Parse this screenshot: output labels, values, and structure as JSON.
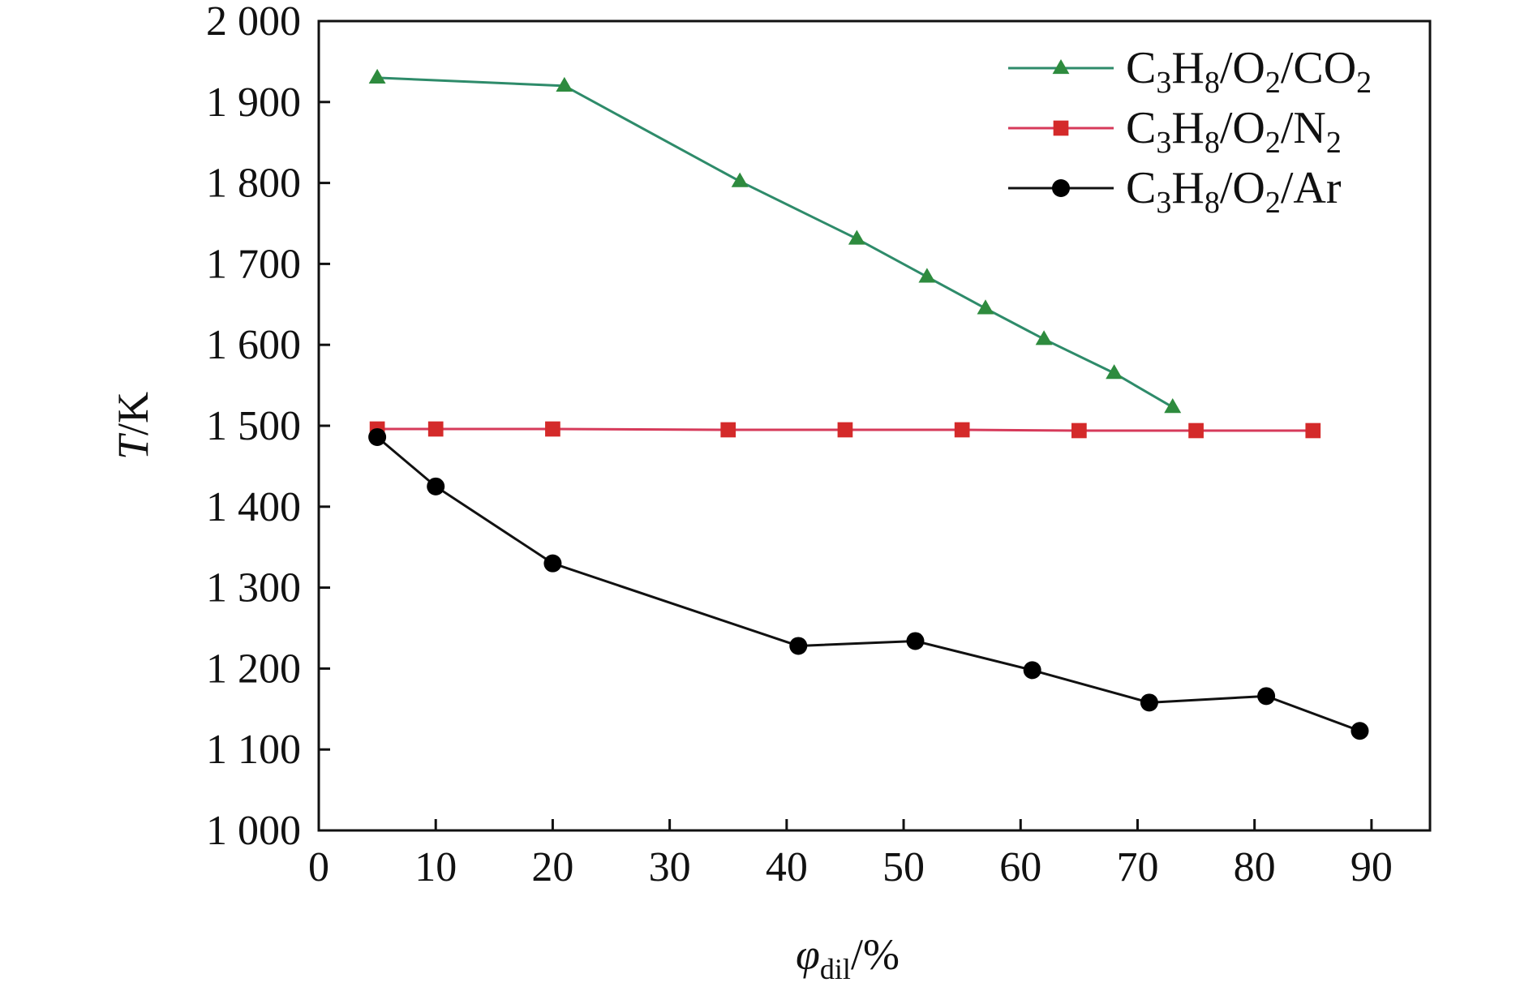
{
  "chart_data": {
    "type": "line",
    "xlabel": {
      "var": "φ",
      "sub": "dil",
      "unit": "/%"
    },
    "ylabel": {
      "var": "T",
      "unit": "/K"
    },
    "xlim": [
      0,
      95
    ],
    "ylim": [
      1000,
      2000
    ],
    "x_ticks": [
      0,
      10,
      20,
      30,
      40,
      50,
      60,
      70,
      80,
      90
    ],
    "x_tick_labels": [
      "0",
      "10",
      "20",
      "30",
      "40",
      "50",
      "60",
      "70",
      "80",
      "90"
    ],
    "y_ticks": [
      1000,
      1100,
      1200,
      1300,
      1400,
      1500,
      1600,
      1700,
      1800,
      1900,
      2000
    ],
    "y_tick_labels": [
      "1 000",
      "1 100",
      "1 200",
      "1 300",
      "1 400",
      "1 500",
      "1 600",
      "1 700",
      "1 800",
      "1 900",
      "2 000"
    ],
    "grid": false,
    "legend_position": "top-right",
    "series": [
      {
        "name": "C3H8/O2/CO2",
        "legend_parts": [
          [
            "C",
            ""
          ],
          [
            "3",
            "sub"
          ],
          [
            "H",
            ""
          ],
          [
            "8",
            "sub"
          ],
          [
            "/O",
            ""
          ],
          [
            "2",
            "sub"
          ],
          [
            "/CO",
            ""
          ],
          [
            "2",
            "sub"
          ]
        ],
        "marker": "triangle",
        "line_color": "#2e8b6a",
        "marker_color": "#2e8b3e",
        "x": [
          5,
          21,
          36,
          46,
          52,
          57,
          62,
          68,
          73
        ],
        "y": [
          1930,
          1920,
          1802,
          1731,
          1684,
          1645,
          1607,
          1565,
          1523
        ]
      },
      {
        "name": "C3H8/O2/N2",
        "legend_parts": [
          [
            "C",
            ""
          ],
          [
            "3",
            "sub"
          ],
          [
            "H",
            ""
          ],
          [
            "8",
            "sub"
          ],
          [
            "/O",
            ""
          ],
          [
            "2",
            "sub"
          ],
          [
            "/N",
            ""
          ],
          [
            "2",
            "sub"
          ]
        ],
        "marker": "square",
        "line_color": "#d63a5a",
        "marker_color": "#d42a2a",
        "x": [
          5,
          10,
          20,
          35,
          45,
          55,
          65,
          75,
          85
        ],
        "y": [
          1496,
          1496,
          1496,
          1495,
          1495,
          1495,
          1494,
          1494,
          1494
        ]
      },
      {
        "name": "C3H8/O2/Ar",
        "legend_parts": [
          [
            "C",
            ""
          ],
          [
            "3",
            "sub"
          ],
          [
            "H",
            ""
          ],
          [
            "8",
            "sub"
          ],
          [
            "/O",
            ""
          ],
          [
            "2",
            "sub"
          ],
          [
            "/Ar",
            ""
          ]
        ],
        "marker": "circle",
        "line_color": "#111111",
        "marker_color": "#000000",
        "x": [
          5,
          10,
          20,
          41,
          51,
          61,
          71,
          81,
          89
        ],
        "y": [
          1486,
          1425,
          1330,
          1228,
          1234,
          1198,
          1158,
          1166,
          1123
        ]
      }
    ]
  }
}
